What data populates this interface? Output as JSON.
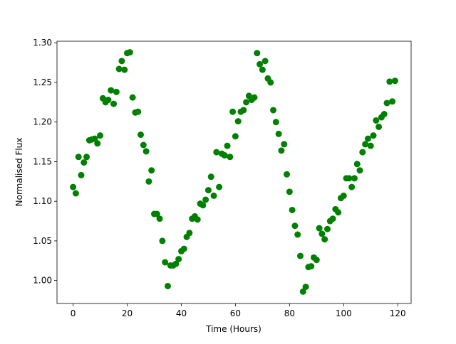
{
  "chart_data": {
    "type": "scatter",
    "x_label": "Time (Hours)",
    "y_label": "Normalised Flux",
    "color": "#008000",
    "x": [
      0,
      1,
      2,
      3,
      4,
      5,
      6,
      7,
      8,
      9,
      10,
      11,
      12,
      13,
      14,
      15,
      16,
      17,
      18,
      19,
      20,
      21,
      22,
      23,
      24,
      25,
      26,
      27,
      28,
      29,
      30,
      31,
      32,
      33,
      34,
      35,
      36,
      37,
      38,
      39,
      40,
      41,
      42,
      43,
      44,
      45,
      46,
      47,
      48,
      49,
      50,
      51,
      52,
      53,
      54,
      55,
      56,
      57,
      58,
      59,
      60,
      61,
      62,
      63,
      64,
      65,
      66,
      67,
      68,
      69,
      70,
      71,
      72,
      73,
      74,
      75,
      76,
      77,
      78,
      79,
      80,
      81,
      82,
      83,
      84,
      85,
      86,
      87,
      88,
      89,
      90,
      91,
      92,
      93,
      94,
      95,
      96,
      97,
      98,
      99,
      100,
      101,
      102,
      103,
      104,
      105,
      106,
      107,
      108,
      109,
      110,
      111,
      112,
      113,
      114,
      115,
      116,
      117,
      118,
      119
    ],
    "values": [
      1.118,
      1.11,
      1.156,
      1.133,
      1.149,
      1.156,
      1.177,
      1.178,
      1.179,
      1.173,
      1.183,
      1.23,
      1.225,
      1.228,
      1.24,
      1.223,
      1.238,
      1.267,
      1.277,
      1.266,
      1.287,
      1.288,
      1.231,
      1.212,
      1.213,
      1.184,
      1.171,
      1.163,
      1.125,
      1.139,
      1.084,
      1.084,
      1.078,
      1.05,
      1.023,
      0.993,
      1.019,
      1.019,
      1.021,
      1.027,
      1.037,
      1.04,
      1.055,
      1.06,
      1.078,
      1.081,
      1.077,
      1.097,
      1.095,
      1.102,
      1.114,
      1.131,
      1.107,
      1.162,
      1.118,
      1.16,
      1.158,
      1.17,
      1.156,
      1.213,
      1.182,
      1.201,
      1.213,
      1.215,
      1.225,
      1.233,
      1.228,
      1.231,
      1.287,
      1.273,
      1.266,
      1.277,
      1.255,
      1.25,
      1.215,
      1.2,
      1.185,
      1.164,
      1.172,
      1.134,
      1.112,
      1.089,
      1.069,
      1.058,
      1.031,
      0.986,
      0.992,
      1.017,
      1.018,
      1.029,
      1.026,
      1.066,
      1.059,
      1.052,
      1.065,
      1.075,
      1.078,
      1.09,
      1.086,
      1.104,
      1.107,
      1.129,
      1.129,
      1.118,
      1.129,
      1.147,
      1.139,
      1.162,
      1.172,
      1.179,
      1.17,
      1.183,
      1.202,
      1.194,
      1.206,
      1.21,
      1.224,
      1.251,
      1.226,
      1.252
    ],
    "xlim": [
      -5.95,
      124.95
    ],
    "xticks": [
      0,
      20,
      40,
      60,
      80,
      100,
      120
    ],
    "ylim": [
      0.971,
      1.302
    ],
    "yticks": [
      {
        "value": 1,
        "label": "1.00"
      },
      1.05,
      {
        "value": 1.1,
        "label": "1.10"
      },
      1.15,
      {
        "value": 1.2,
        "label": "1.20"
      },
      1.25,
      {
        "value": 1.3,
        "label": "1.30"
      }
    ]
  }
}
